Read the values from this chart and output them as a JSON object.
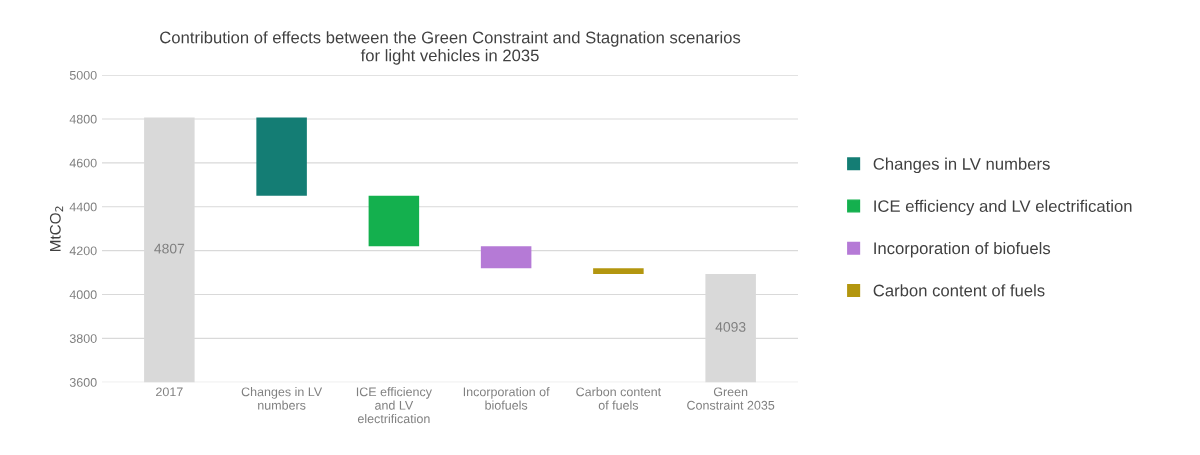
{
  "chart_data": {
    "type": "bar",
    "title": "Contribution of effects between the Green Constraint and Stagnation scenarios\nfor light vehicles in 2035",
    "ylabel": "MtCO$_{2}$",
    "categories": [
      "2017",
      "Changes in LV\nnumbers",
      "ICE efficiency\nand LV\nelectrification",
      "Incorporation of\nbiofuels",
      "Carbon content\nof fuels",
      "Green\nConstraint 2035"
    ],
    "series": [
      {
        "color": "#d9d9d9",
        "values": [
          4807,
          null,
          null,
          null,
          null,
          4093
        ],
        "value_labels": [
          "4807",
          null,
          null,
          null,
          null,
          "4093"
        ]
      },
      {
        "name": "Changes in LV numbers",
        "color": "#147d74",
        "base": [
          null,
          4450,
          null,
          null,
          null,
          null
        ],
        "values": [
          null,
          357,
          null,
          null,
          null,
          null
        ]
      },
      {
        "name": "ICE efficiency and LV electrification",
        "color": "#14b04e",
        "base": [
          null,
          null,
          4220,
          null,
          null,
          null
        ],
        "values": [
          null,
          null,
          230,
          null,
          null,
          null
        ]
      },
      {
        "name": "Incorporation of biofuels",
        "color": "#b57ad6",
        "base": [
          null,
          null,
          null,
          4120,
          null,
          null
        ],
        "values": [
          null,
          null,
          null,
          100,
          null,
          null
        ]
      },
      {
        "name": "Carbon content of fuels",
        "color": "#b3960f",
        "base": [
          null,
          null,
          null,
          null,
          4093,
          null
        ],
        "values": [
          null,
          null,
          null,
          null,
          27,
          null
        ]
      }
    ],
    "ylim": [
      3600,
      5000
    ],
    "yticks": [
      3600,
      3800,
      4000,
      4200,
      4400,
      4600,
      4800,
      5000
    ],
    "grid": "y",
    "legend": "right"
  }
}
